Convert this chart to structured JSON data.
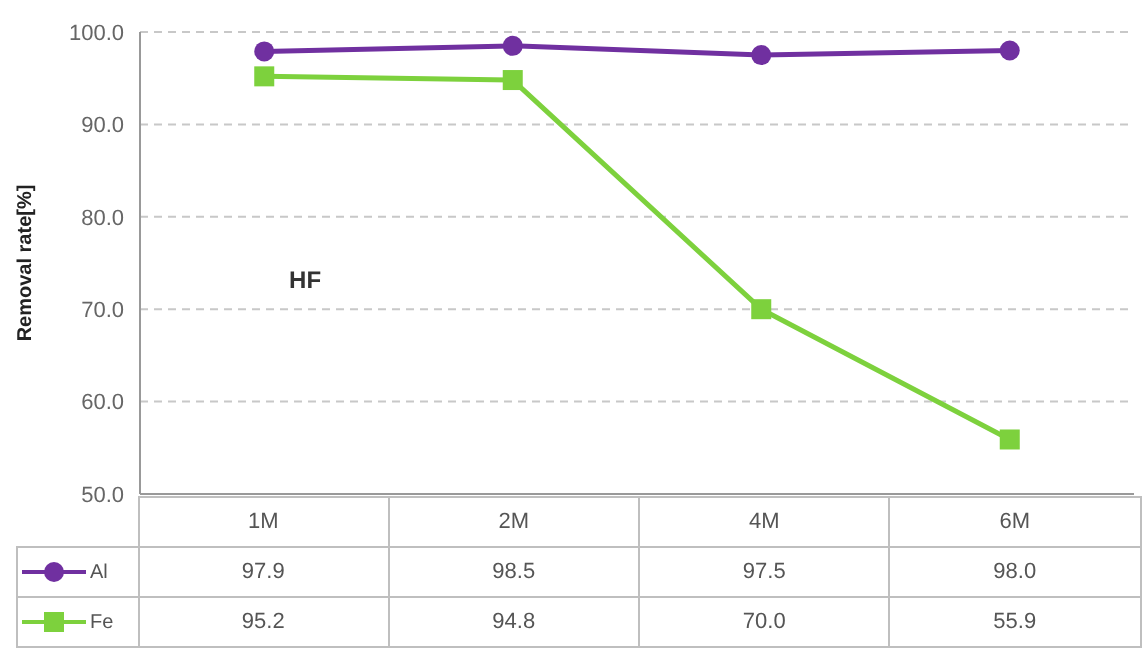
{
  "chart_data": {
    "type": "line",
    "ylabel": "Removal rate[%]",
    "categories": [
      "1M",
      "2M",
      "4M",
      "6M"
    ],
    "series": [
      {
        "name": "Al",
        "color": "#7030a0",
        "marker": "circle",
        "values": [
          97.9,
          98.5,
          97.5,
          98.0
        ],
        "value_labels": [
          "97.9",
          "98.5",
          "97.5",
          "98.0"
        ]
      },
      {
        "name": "Fe",
        "color": "#7dd13d",
        "marker": "square",
        "values": [
          95.2,
          94.8,
          70.0,
          55.9
        ],
        "value_labels": [
          "95.2",
          "94.8",
          "70.0",
          "55.9"
        ]
      }
    ],
    "ylim": [
      50,
      100
    ],
    "yticks": [
      {
        "value": 50,
        "label": "50.0"
      },
      {
        "value": 60,
        "label": "60.0"
      },
      {
        "value": 70,
        "label": "70.0"
      },
      {
        "value": 80,
        "label": "80.0"
      },
      {
        "value": 90,
        "label": "90.0"
      },
      {
        "value": 100,
        "label": "100.0"
      }
    ],
    "grid": "y",
    "legend": "bottom",
    "annotations": [
      "HF"
    ]
  }
}
